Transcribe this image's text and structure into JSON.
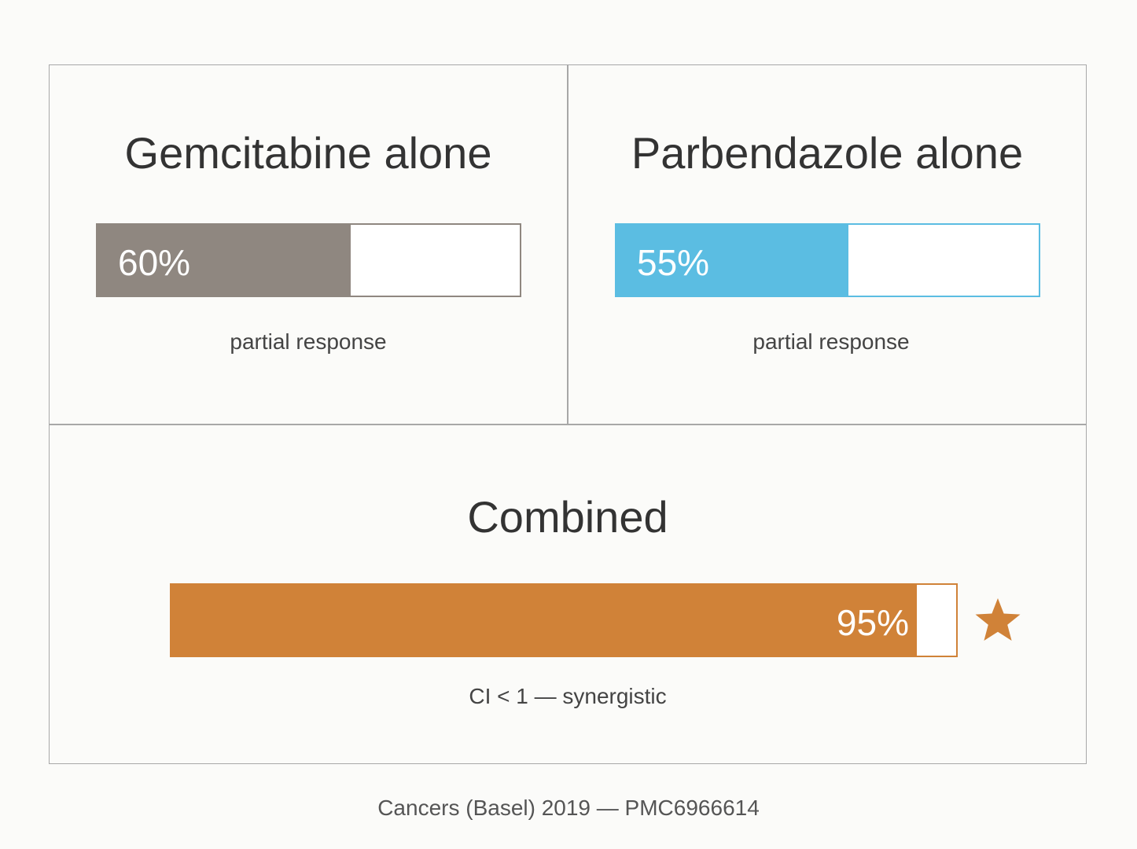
{
  "panels": {
    "gemcitabine": {
      "title": "Gemcitabine alone",
      "percent_label": "60%",
      "fill_fraction": 0.6,
      "caption": "partial response",
      "fill_color": "#8f8780",
      "border_color": "#8f8780"
    },
    "parbendazole": {
      "title": "Parbendazole alone",
      "percent_label": "55%",
      "fill_fraction": 0.55,
      "caption": "partial response",
      "fill_color": "#5bbde2",
      "border_color": "#5bbde2"
    },
    "combined": {
      "title": "Combined",
      "percent_label": "95%",
      "fill_fraction": 0.95,
      "caption": "CI < 1 — synergistic",
      "fill_color": "#d08238",
      "border_color": "#d08238",
      "marker_icon": "star-icon"
    }
  },
  "footer": {
    "citation": "Cancers (Basel) 2019 — PMC6966614"
  }
}
